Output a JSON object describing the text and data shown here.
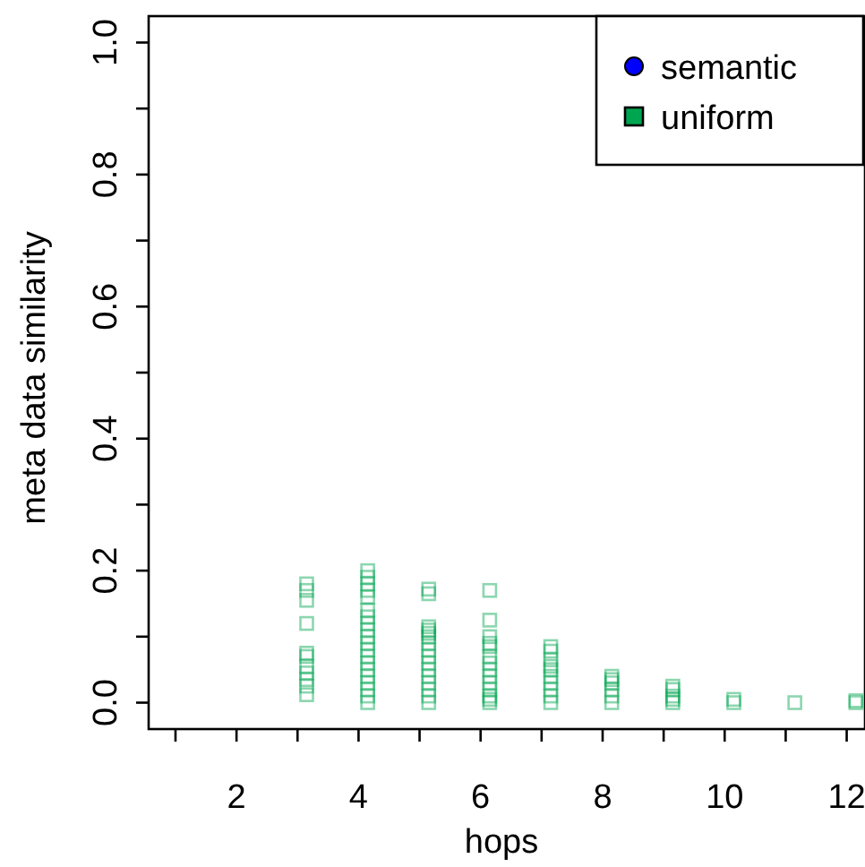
{
  "chart_data": {
    "type": "scatter",
    "xlabel": "hops",
    "ylabel": "meta data similarity",
    "xlim": [
      0.56,
      12.3
    ],
    "ylim": [
      -0.04,
      1.04
    ],
    "xticks": [
      {
        "value": 1,
        "label": null
      },
      2,
      {
        "value": 3,
        "label": null
      },
      4,
      {
        "value": 5,
        "label": null
      },
      6,
      {
        "value": 7,
        "label": null
      },
      8,
      {
        "value": 9,
        "label": null
      },
      10,
      {
        "value": 11,
        "label": null
      },
      12
    ],
    "yticks": [
      {
        "value": 0,
        "label": "0.0"
      },
      {
        "value": 0.1,
        "label": null
      },
      0.2,
      {
        "value": 0.3,
        "label": null
      },
      0.4,
      {
        "value": 0.5,
        "label": null
      },
      0.6,
      {
        "value": 0.7,
        "label": null
      },
      0.8,
      {
        "value": 0.9,
        "label": null
      },
      {
        "value": 1,
        "label": "1.0"
      }
    ],
    "grid": false,
    "legend": "top right",
    "series": [
      {
        "name": "semantic",
        "color": "#0000ff",
        "marker": "circle"
      },
      {
        "name": "uniform",
        "color": "#00a550",
        "marker": "square",
        "x": [
          3.15,
          3.15,
          3.15,
          3.15,
          3.15,
          3.15,
          3.15,
          3.15,
          3.15,
          3.15,
          3.15,
          4.15,
          4.15,
          4.15,
          4.15,
          4.15,
          4.15,
          4.15,
          4.15,
          4.15,
          4.15,
          4.15,
          4.15,
          4.15,
          4.15,
          4.15,
          4.15,
          4.15,
          4.15,
          4.15,
          4.15,
          5.15,
          5.15,
          5.15,
          5.15,
          5.15,
          5.15,
          5.15,
          5.15,
          5.15,
          5.15,
          5.15,
          5.15,
          5.15,
          5.15,
          5.15,
          5.15,
          6.15,
          6.15,
          6.15,
          6.15,
          6.15,
          6.15,
          6.15,
          6.15,
          6.15,
          6.15,
          6.15,
          6.15,
          6.15,
          6.15,
          7.15,
          7.15,
          7.15,
          7.15,
          7.15,
          7.15,
          7.15,
          7.15,
          7.15,
          7.15,
          8.15,
          8.15,
          8.15,
          8.15,
          8.15,
          8.15,
          9.15,
          9.15,
          9.15,
          9.15,
          9.15,
          10.15,
          10.15,
          11.15,
          12.15,
          12.15
        ],
        "values": [
          0.18,
          0.17,
          0.155,
          0.12,
          0.075,
          0.07,
          0.055,
          0.045,
          0.035,
          0.025,
          0.012,
          0.2,
          0.19,
          0.18,
          0.17,
          0.16,
          0.14,
          0.13,
          0.12,
          0.11,
          0.1,
          0.09,
          0.08,
          0.07,
          0.06,
          0.05,
          0.04,
          0.03,
          0.02,
          0.01,
          0,
          0.172,
          0.165,
          0.115,
          0.11,
          0.105,
          0.1,
          0.09,
          0.08,
          0.07,
          0.06,
          0.05,
          0.04,
          0.03,
          0.02,
          0.01,
          0,
          0.17,
          0.125,
          0.1,
          0.09,
          0.085,
          0.07,
          0.06,
          0.05,
          0.04,
          0.03,
          0.02,
          0.01,
          0.005,
          0,
          0.085,
          0.078,
          0.065,
          0.055,
          0.05,
          0.04,
          0.03,
          0.02,
          0.01,
          0,
          0.04,
          0.035,
          0.03,
          0.02,
          0.01,
          0,
          0.025,
          0.02,
          0.01,
          0.005,
          0,
          0.005,
          0,
          0,
          0.003,
          0
        ]
      }
    ]
  }
}
